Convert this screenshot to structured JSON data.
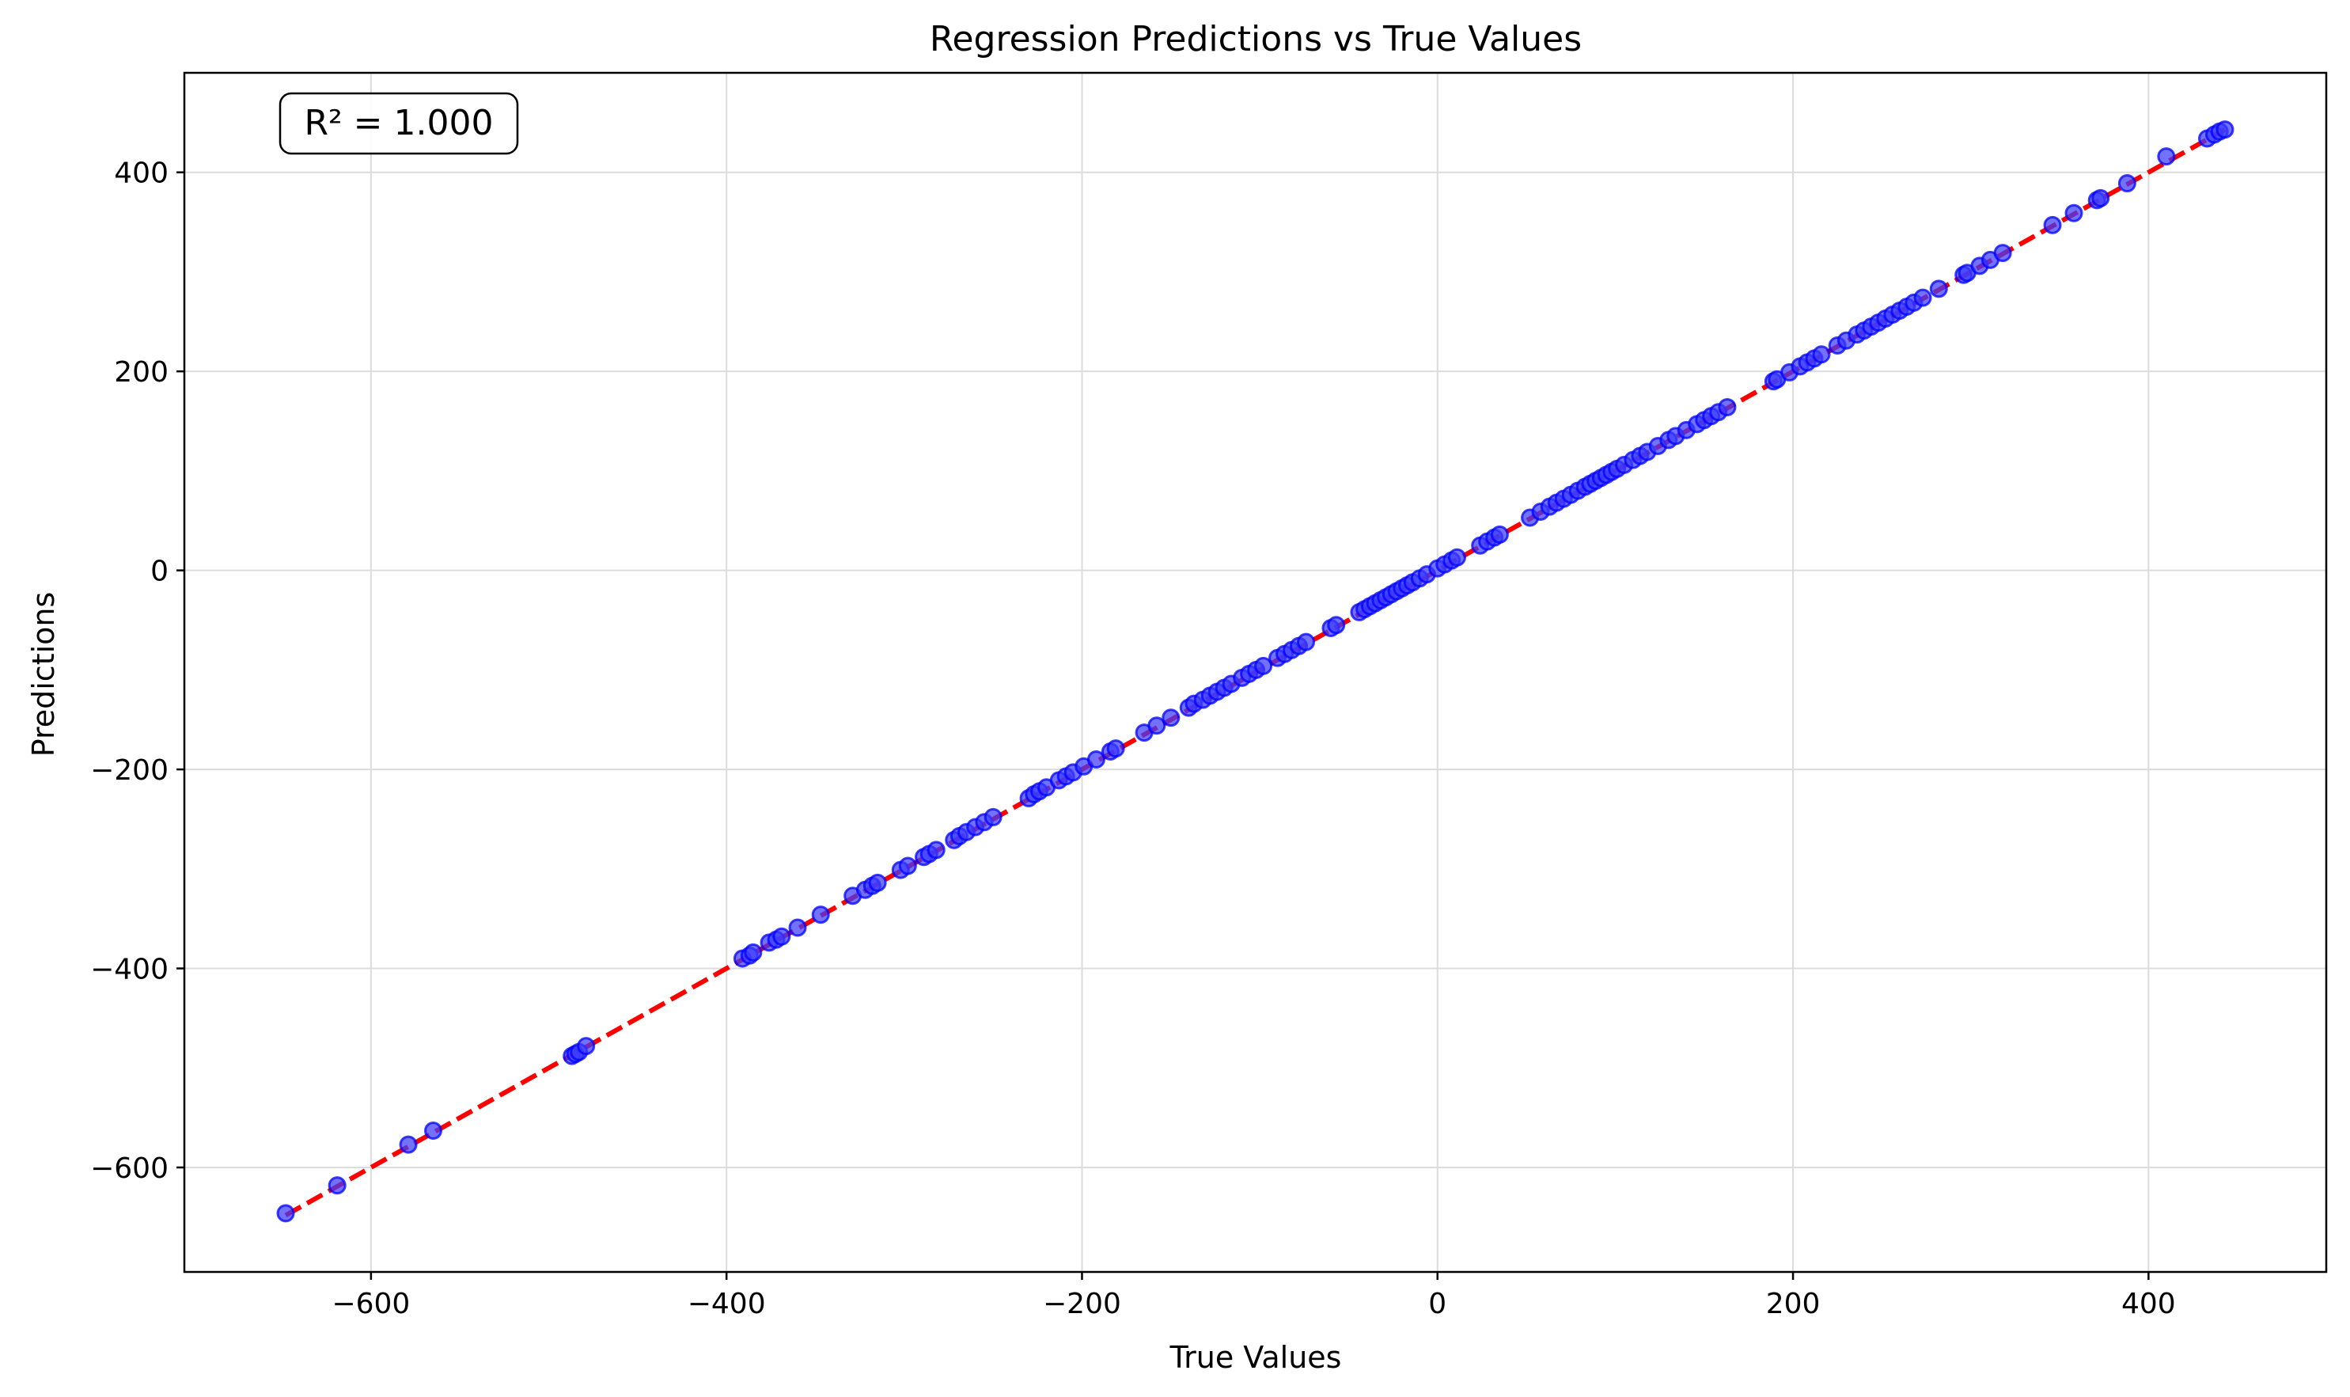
{
  "chart_data": {
    "type": "scatter",
    "title": "Regression Predictions vs True Values",
    "xlabel": "True Values",
    "ylabel": "Predictions",
    "xlim": [
      -705,
      500
    ],
    "ylim": [
      -705,
      500
    ],
    "xticks": [
      -600,
      -400,
      -200,
      0,
      200,
      400
    ],
    "xtick_labels": [
      "−600",
      "−400",
      "−200",
      "0",
      "200",
      "400"
    ],
    "yticks": [
      -600,
      -400,
      -200,
      0,
      200,
      400
    ],
    "ytick_labels": [
      "−600",
      "−400",
      "−200",
      "0",
      "200",
      "400"
    ],
    "grid": true,
    "annotation": "R² = 1.000",
    "colors": {
      "points_fill": "#3b3bff",
      "points_edge": "#0000ff",
      "reference_line": "#ff0000",
      "grid": "#dcdcdc"
    },
    "reference_line": {
      "x": [
        -648,
        443
      ],
      "y": [
        -648,
        443
      ],
      "style": "dashed"
    },
    "x": [
      -648,
      -619,
      -579,
      -565,
      -487,
      -485,
      -483,
      -479,
      -391,
      -387,
      -385,
      -376,
      -372,
      -369,
      -360,
      -347,
      -329,
      -322,
      -318,
      -315,
      -302,
      -298,
      -289,
      -286,
      -282,
      -272,
      -269,
      -265,
      -260,
      -255,
      -250,
      -230,
      -227,
      -224,
      -220,
      -213,
      -209,
      -205,
      -199,
      -192,
      -184,
      -181,
      -165,
      -158,
      -150,
      -140,
      -137,
      -132,
      -128,
      -124,
      -120,
      -116,
      -110,
      -106,
      -102,
      -98,
      -90,
      -86,
      -82,
      -78,
      -74,
      -60,
      -57,
      -44,
      -41,
      -38,
      -35,
      -32,
      -29,
      -26,
      -23,
      -20,
      -17,
      -14,
      -10,
      -6,
      0,
      4,
      8,
      11,
      24,
      28,
      32,
      35,
      52,
      58,
      63,
      67,
      71,
      75,
      79,
      83,
      86,
      89,
      92,
      95,
      98,
      101,
      105,
      110,
      114,
      118,
      124,
      130,
      134,
      140,
      146,
      150,
      154,
      158,
      163,
      189,
      191,
      198,
      204,
      208,
      212,
      216,
      225,
      230,
      236,
      240,
      244,
      248,
      252,
      256,
      260,
      264,
      268,
      273,
      282,
      296,
      298,
      305,
      311,
      318,
      346,
      358,
      371,
      373,
      388,
      410,
      433,
      437,
      440,
      443
    ],
    "y": [
      -646,
      -618,
      -577,
      -563,
      -488,
      -486,
      -484,
      -478,
      -390,
      -387,
      -384,
      -374,
      -371,
      -368,
      -359,
      -346,
      -327,
      -321,
      -317,
      -314,
      -301,
      -297,
      -288,
      -285,
      -281,
      -271,
      -267,
      -263,
      -258,
      -253,
      -248,
      -229,
      -225,
      -222,
      -218,
      -211,
      -207,
      -203,
      -197,
      -190,
      -182,
      -179,
      -163,
      -156,
      -148,
      -138,
      -134,
      -130,
      -126,
      -122,
      -118,
      -114,
      -108,
      -104,
      -100,
      -96,
      -88,
      -84,
      -80,
      -76,
      -72,
      -58,
      -55,
      -42,
      -39,
      -36,
      -33,
      -30,
      -27,
      -24,
      -21,
      -18,
      -15,
      -12,
      -8,
      -4,
      2,
      6,
      10,
      13,
      25,
      29,
      33,
      36,
      53,
      59,
      64,
      68,
      72,
      76,
      80,
      84,
      87,
      90,
      93,
      96,
      99,
      102,
      106,
      111,
      115,
      119,
      125,
      131,
      135,
      141,
      147,
      151,
      155,
      159,
      164,
      190,
      192,
      199,
      205,
      209,
      213,
      217,
      226,
      231,
      237,
      241,
      245,
      249,
      253,
      257,
      261,
      265,
      269,
      274,
      283,
      297,
      299,
      306,
      312,
      319,
      347,
      359,
      372,
      374,
      389,
      416,
      434,
      438,
      441,
      443
    ]
  }
}
